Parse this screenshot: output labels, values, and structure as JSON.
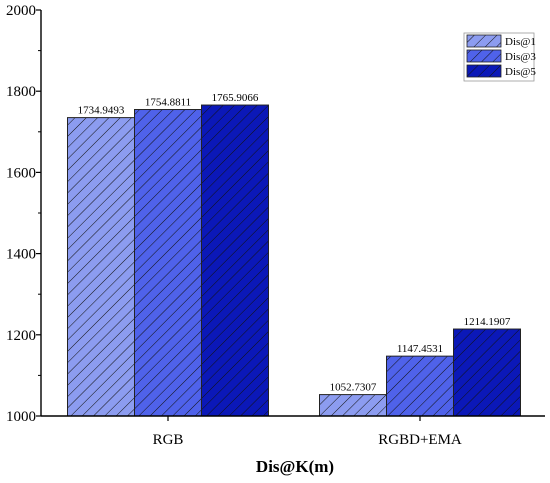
{
  "chart_data": {
    "type": "bar",
    "categories": [
      "RGB",
      "RGBD+EMA"
    ],
    "series": [
      {
        "name": "Dis@1",
        "values": [
          1734.9493,
          1052.7307
        ],
        "color": "#8c9cf0",
        "value_labels": [
          "1734.9493",
          "1052.7307"
        ]
      },
      {
        "name": "Dis@3",
        "values": [
          1754.8811,
          1147.4531
        ],
        "color": "#4f62ea",
        "value_labels": [
          "1754.8811",
          "1147.4531"
        ]
      },
      {
        "name": "Dis@5",
        "values": [
          1765.9066,
          1214.1907
        ],
        "color": "#0b18b8",
        "value_labels": [
          "1765.9066",
          "1214.1907"
        ]
      }
    ],
    "title": "",
    "xlabel": "Dis@K(m)",
    "ylabel": "",
    "ylim": [
      1000,
      2000
    ],
    "yticks": [
      1000,
      1200,
      1400,
      1600,
      1800,
      2000
    ],
    "ytick_labels": [
      "1000",
      "1200",
      "1400",
      "1600",
      "1800",
      "2000"
    ],
    "grid": false,
    "legend_position": "top-right",
    "bar_pattern": "diagonal-hatch"
  }
}
